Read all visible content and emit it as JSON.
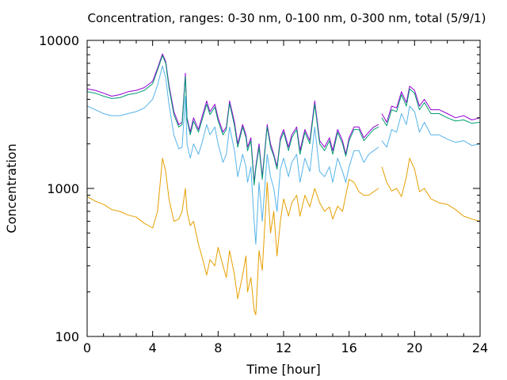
{
  "chart_data": {
    "type": "line",
    "title": "Concentration, ranges: 0-30 nm, 0-100 nm, 0-300 nm, total (5/9/1)",
    "xlabel": "Time [hour]",
    "ylabel": "Concentration",
    "xlim": [
      0,
      24
    ],
    "ylim": [
      100,
      10000
    ],
    "yscale": "log",
    "grid": false,
    "legend": "none",
    "x_ticks": [
      "0",
      "4",
      "8",
      "12",
      "16",
      "20",
      "24"
    ],
    "y_ticks": [
      "100",
      "1000",
      "10000"
    ],
    "series": [
      {
        "color": "#9400d3",
        "x": [
          0,
          0.5,
          1,
          1.5,
          2,
          2.5,
          3,
          3.5,
          4,
          4.3,
          4.6,
          4.8,
          5,
          5.3,
          5.6,
          5.8,
          6,
          6.1,
          6.3,
          6.5,
          6.8,
          7,
          7.3,
          7.5,
          7.8,
          8,
          8.3,
          8.5,
          8.7,
          9,
          9.2,
          9.5,
          9.7,
          9.8,
          10,
          10.2,
          10.3,
          10.5,
          10.7,
          11,
          11.2,
          11.4,
          11.6,
          11.8,
          12,
          12.3,
          12.5,
          12.8,
          13,
          13.3,
          13.6,
          13.9,
          14.2,
          14.5,
          14.8,
          15,
          15.3,
          15.6,
          15.8,
          16,
          16.3,
          16.6,
          16.9,
          17.2,
          17.5,
          17.8,
          null,
          18,
          18.3,
          18.6,
          18.9,
          19.2,
          19.5,
          19.7,
          20,
          20.3,
          20.6,
          21,
          21.5,
          22,
          22.5,
          23,
          23.5,
          24
        ],
        "y": [
          4700,
          4600,
          4400,
          4200,
          4300,
          4500,
          4600,
          4800,
          5300,
          6500,
          8100,
          7200,
          5000,
          3300,
          2700,
          2800,
          6000,
          3000,
          2400,
          3000,
          2500,
          3000,
          3900,
          3300,
          3700,
          3000,
          2400,
          2600,
          3900,
          2800,
          2000,
          2700,
          2300,
          1900,
          2200,
          1100,
          1400,
          2000,
          1200,
          2700,
          2000,
          1700,
          1400,
          2200,
          2500,
          1900,
          2300,
          2600,
          1800,
          2500,
          2100,
          3900,
          2100,
          1900,
          2200,
          1800,
          2500,
          2100,
          1700,
          2200,
          2600,
          2600,
          2200,
          2400,
          2600,
          2700,
          null,
          3200,
          2800,
          3600,
          3500,
          4500,
          3800,
          4900,
          4600,
          3600,
          4000,
          3400,
          3400,
          3200,
          3000,
          3100,
          2900,
          3000
        ]
      },
      {
        "color": "#009e73",
        "x": [
          0,
          0.5,
          1,
          1.5,
          2,
          2.5,
          3,
          3.5,
          4,
          4.3,
          4.6,
          4.8,
          5,
          5.3,
          5.6,
          5.8,
          6,
          6.1,
          6.3,
          6.5,
          6.8,
          7,
          7.3,
          7.5,
          7.8,
          8,
          8.3,
          8.5,
          8.7,
          9,
          9.2,
          9.5,
          9.7,
          9.8,
          10,
          10.2,
          10.3,
          10.5,
          10.7,
          11,
          11.2,
          11.4,
          11.6,
          11.8,
          12,
          12.3,
          12.5,
          12.8,
          13,
          13.3,
          13.6,
          13.9,
          14.2,
          14.5,
          14.8,
          15,
          15.3,
          15.6,
          15.8,
          16,
          16.3,
          16.6,
          16.9,
          17.2,
          17.5,
          17.8,
          null,
          18,
          18.3,
          18.6,
          18.9,
          19.2,
          19.5,
          19.7,
          20,
          20.3,
          20.6,
          21,
          21.5,
          22,
          22.5,
          23,
          23.5,
          24
        ],
        "y": [
          4500,
          4400,
          4200,
          4050,
          4100,
          4300,
          4400,
          4600,
          5100,
          6300,
          7900,
          7000,
          4800,
          3150,
          2600,
          2700,
          5700,
          2900,
          2300,
          2850,
          2400,
          2850,
          3700,
          3150,
          3550,
          2850,
          2300,
          2500,
          3750,
          2650,
          1900,
          2600,
          2200,
          1800,
          2100,
          1050,
          1350,
          1900,
          1150,
          2600,
          1900,
          1650,
          1350,
          2100,
          2400,
          1800,
          2200,
          2500,
          1700,
          2400,
          2000,
          3700,
          2000,
          1800,
          2100,
          1700,
          2400,
          2000,
          1650,
          2100,
          2500,
          2500,
          2100,
          2300,
          2500,
          2600,
          null,
          3000,
          2650,
          3400,
          3300,
          4300,
          3600,
          4700,
          4400,
          3400,
          3800,
          3200,
          3200,
          3000,
          2850,
          2900,
          2750,
          2800
        ]
      },
      {
        "color": "#56b4e9",
        "x": [
          0,
          0.5,
          1,
          1.5,
          2,
          2.5,
          3,
          3.5,
          4,
          4.3,
          4.6,
          4.8,
          5,
          5.3,
          5.6,
          5.8,
          6,
          6.1,
          6.3,
          6.5,
          6.8,
          7,
          7.3,
          7.5,
          7.8,
          8,
          8.3,
          8.5,
          8.7,
          9,
          9.2,
          9.5,
          9.7,
          9.8,
          10,
          10.2,
          10.3,
          10.5,
          10.7,
          11,
          11.2,
          11.4,
          11.6,
          11.8,
          12,
          12.3,
          12.5,
          12.8,
          13,
          13.3,
          13.6,
          13.9,
          14.2,
          14.5,
          14.8,
          15,
          15.3,
          15.6,
          15.8,
          16,
          16.3,
          16.6,
          16.9,
          17.2,
          17.5,
          17.8,
          null,
          18,
          18.3,
          18.6,
          18.9,
          19.2,
          19.5,
          19.7,
          20,
          20.3,
          20.6,
          21,
          21.5,
          22,
          22.5,
          23,
          23.5,
          24
        ],
        "y": [
          3600,
          3400,
          3200,
          3100,
          3100,
          3200,
          3300,
          3500,
          4000,
          5000,
          6700,
          5600,
          3700,
          2300,
          1850,
          1900,
          4200,
          2000,
          1600,
          2000,
          1700,
          2000,
          2700,
          2300,
          2600,
          2000,
          1500,
          1700,
          2600,
          1800,
          1200,
          1700,
          1400,
          1100,
          1400,
          600,
          420,
          1100,
          600,
          1700,
          1200,
          1000,
          700,
          1350,
          1600,
          1200,
          1500,
          1700,
          1100,
          1600,
          1300,
          2600,
          1300,
          1200,
          1400,
          1100,
          1600,
          1300,
          1100,
          1400,
          1800,
          1800,
          1500,
          1700,
          1800,
          1900,
          null,
          2100,
          1900,
          2500,
          2400,
          3200,
          2700,
          3600,
          3300,
          2400,
          2800,
          2300,
          2300,
          2150,
          2050,
          2100,
          1950,
          2000
        ]
      },
      {
        "color": "#e69f00",
        "x": [
          0,
          0.5,
          1,
          1.5,
          2,
          2.5,
          3,
          3.5,
          4,
          4.3,
          4.6,
          4.8,
          5,
          5.3,
          5.6,
          5.8,
          6,
          6.1,
          6.3,
          6.5,
          6.8,
          7,
          7.3,
          7.5,
          7.8,
          8,
          8.3,
          8.5,
          8.7,
          9,
          9.2,
          9.5,
          9.7,
          9.8,
          10,
          10.2,
          10.3,
          10.5,
          10.7,
          11,
          11.2,
          11.4,
          11.6,
          11.8,
          12,
          12.3,
          12.5,
          12.8,
          13,
          13.3,
          13.6,
          13.9,
          14.2,
          14.5,
          14.8,
          15,
          15.3,
          15.6,
          15.8,
          16,
          16.3,
          16.6,
          16.9,
          17.2,
          17.5,
          17.8,
          null,
          18,
          18.3,
          18.6,
          18.9,
          19.2,
          19.5,
          19.7,
          20,
          20.3,
          20.6,
          21,
          21.5,
          22,
          22.5,
          23,
          23.5,
          24
        ],
        "y": [
          880,
          820,
          780,
          720,
          700,
          660,
          640,
          580,
          540,
          700,
          1600,
          1300,
          850,
          600,
          620,
          700,
          1000,
          700,
          560,
          600,
          420,
          350,
          260,
          330,
          300,
          400,
          300,
          250,
          380,
          260,
          180,
          260,
          350,
          200,
          250,
          150,
          140,
          380,
          280,
          1100,
          500,
          700,
          350,
          600,
          850,
          650,
          800,
          900,
          650,
          900,
          750,
          1000,
          800,
          700,
          750,
          620,
          760,
          700,
          900,
          1150,
          1100,
          950,
          900,
          900,
          950,
          1000,
          null,
          1400,
          1100,
          960,
          1000,
          880,
          1200,
          1600,
          1350,
          950,
          1000,
          850,
          800,
          780,
          720,
          650,
          620,
          600
        ]
      }
    ]
  }
}
